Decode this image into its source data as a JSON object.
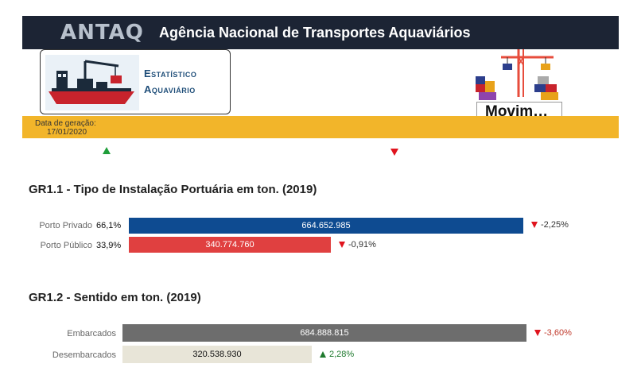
{
  "header": {
    "logo": "ANTAQ",
    "agency_name": "Agência Nacional de Transportes Aquaviários"
  },
  "stat_card": {
    "line1": "Estatístico",
    "line2": "Aquaviário"
  },
  "movim_label": "Movim…",
  "generation": {
    "label": "Data de geração:",
    "date": "17/01/2020"
  },
  "colors": {
    "header_bg": "#1c2434",
    "yellow_bar": "#f2b52a",
    "porto_privado": "#0e4b91",
    "porto_publico": "#e04040",
    "embarcados": "#6d6d6d",
    "desembarcados": "#e8e5d8",
    "up": "#1f9e3a",
    "down": "#e0141e"
  },
  "gr1_1": {
    "title": "GR1.1 - Tipo de Instalação Portuária em ton. (2019)",
    "rows": [
      {
        "label": "Porto Privado",
        "pct": "66,1%",
        "value_text": "664.652.985",
        "value": 664652985,
        "delta": "-2,25%",
        "direction": "down"
      },
      {
        "label": "Porto Público",
        "pct": "33,9%",
        "value_text": "340.774.760",
        "value": 340774760,
        "delta": "-0,91%",
        "direction": "down"
      }
    ]
  },
  "gr1_2": {
    "title": "GR1.2 - Sentido em ton.  (2019)",
    "rows": [
      {
        "label": "Embarcados",
        "value_text": "684.888.815",
        "value": 684888815,
        "delta": "-3,60%",
        "direction": "down"
      },
      {
        "label": "Desembarcados",
        "value_text": "320.538.930",
        "value": 320538930,
        "delta": "2,28%",
        "direction": "up"
      }
    ]
  }
}
